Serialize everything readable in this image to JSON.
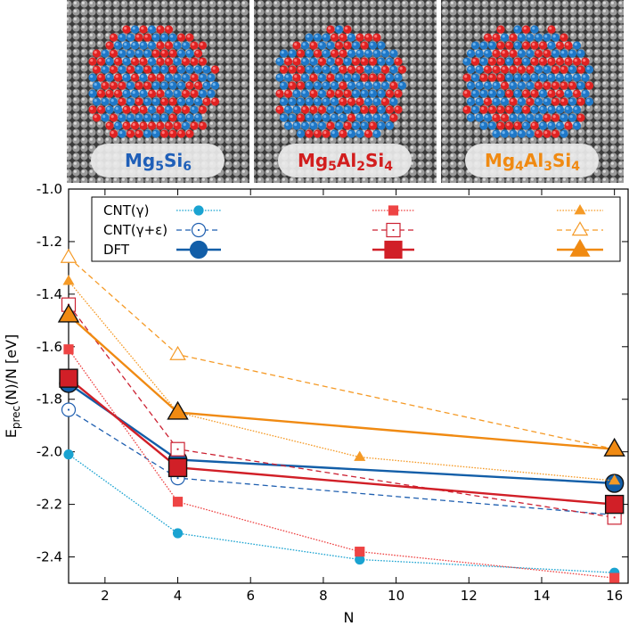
{
  "panels": [
    {
      "formula_parts": [
        {
          "t": "Mg",
          "sub": false
        },
        {
          "t": "5",
          "sub": true
        },
        {
          "t": "Si",
          "sub": false
        },
        {
          "t": "6",
          "sub": true
        }
      ],
      "color": "#1f5fb8",
      "accent": "#2079b4",
      "accent2": "#2079b4"
    },
    {
      "formula_parts": [
        {
          "t": "Mg",
          "sub": false
        },
        {
          "t": "5",
          "sub": true
        },
        {
          "t": "Al",
          "sub": false
        },
        {
          "t": "2",
          "sub": true
        },
        {
          "t": "Si",
          "sub": false
        },
        {
          "t": "4",
          "sub": true
        }
      ],
      "color": "#d21e1e",
      "accent": "#e02222",
      "accent2": "#2079b4"
    },
    {
      "formula_parts": [
        {
          "t": "Mg",
          "sub": false
        },
        {
          "t": "4",
          "sub": true
        },
        {
          "t": "Al",
          "sub": false
        },
        {
          "t": "3",
          "sub": true
        },
        {
          "t": "Si",
          "sub": false
        },
        {
          "t": "4",
          "sub": true
        }
      ],
      "color": "#f08a12",
      "accent": "#e02222",
      "accent2": "#2079b4"
    }
  ],
  "legend": {
    "labels": [
      "CNT(γ)",
      "CNT(γ+ε)",
      "DFT"
    ]
  },
  "chart_data": {
    "type": "line",
    "xlabel": "N",
    "ylabel_main": "E",
    "ylabel_sub": "prec",
    "ylabel_rest": "(N)/N [eV]",
    "xlim": [
      1,
      16.4
    ],
    "ylim": [
      -2.5,
      -1.0
    ],
    "xticks": [
      2,
      4,
      6,
      8,
      10,
      12,
      14,
      16
    ],
    "yticks": [
      -1.0,
      -1.2,
      -1.4,
      -1.6,
      -1.8,
      -2.0,
      -2.2,
      -2.4
    ],
    "series": [
      {
        "name": "Mg5Si6 CNT(γ)",
        "color": "#1aa3d1",
        "style": "dotted",
        "marker": "circle",
        "fill": true,
        "size": "small",
        "x": [
          1,
          4,
          9,
          16
        ],
        "y": [
          -2.01,
          -2.31,
          -2.41,
          -2.46
        ]
      },
      {
        "name": "Mg5Si6 CNT(γ+ε)",
        "color": "#1f5fb0",
        "style": "dashed",
        "marker": "circle",
        "fill": false,
        "size": "medium",
        "x": [
          1,
          4,
          16
        ],
        "y": [
          -1.84,
          -2.1,
          -2.24
        ]
      },
      {
        "name": "Mg5Si6 DFT",
        "color": "#125ea8",
        "style": "solid",
        "marker": "circle",
        "fill": true,
        "size": "large",
        "x": [
          1,
          4,
          16
        ],
        "y": [
          -1.74,
          -2.03,
          -2.12
        ]
      },
      {
        "name": "Mg5Al2Si4 CNT(γ)",
        "color": "#ee4444",
        "style": "dotted",
        "marker": "square",
        "fill": true,
        "size": "small",
        "x": [
          1,
          4,
          9,
          16
        ],
        "y": [
          -1.61,
          -2.19,
          -2.38,
          -2.48
        ]
      },
      {
        "name": "Mg5Al2Si4 CNT(γ+ε)",
        "color": "#cc2233",
        "style": "dashed",
        "marker": "square",
        "fill": false,
        "size": "medium",
        "x": [
          1,
          4,
          16
        ],
        "y": [
          -1.44,
          -1.99,
          -2.25
        ]
      },
      {
        "name": "Mg5Al2Si4 DFT",
        "color": "#d11f27",
        "style": "solid",
        "marker": "square",
        "fill": true,
        "size": "large",
        "x": [
          1,
          4,
          16
        ],
        "y": [
          -1.72,
          -2.06,
          -2.2
        ]
      },
      {
        "name": "Mg4Al3Si4 CNT(γ)",
        "color": "#f59a26",
        "style": "dotted",
        "marker": "triangle",
        "fill": true,
        "size": "small",
        "x": [
          1,
          4,
          9,
          16
        ],
        "y": [
          -1.35,
          -1.85,
          -2.02,
          -2.11
        ]
      },
      {
        "name": "Mg4Al3Si4 CNT(γ+ε)",
        "color": "#f59a26",
        "style": "dashed",
        "marker": "triangle",
        "fill": false,
        "size": "medium",
        "x": [
          1,
          4,
          16
        ],
        "y": [
          -1.26,
          -1.63,
          -1.99
        ]
      },
      {
        "name": "Mg4Al3Si4 DFT",
        "color": "#f08a12",
        "style": "solid",
        "marker": "triangle",
        "fill": true,
        "size": "large",
        "x": [
          1,
          4,
          16
        ],
        "y": [
          -1.48,
          -1.85,
          -1.99
        ]
      }
    ]
  }
}
